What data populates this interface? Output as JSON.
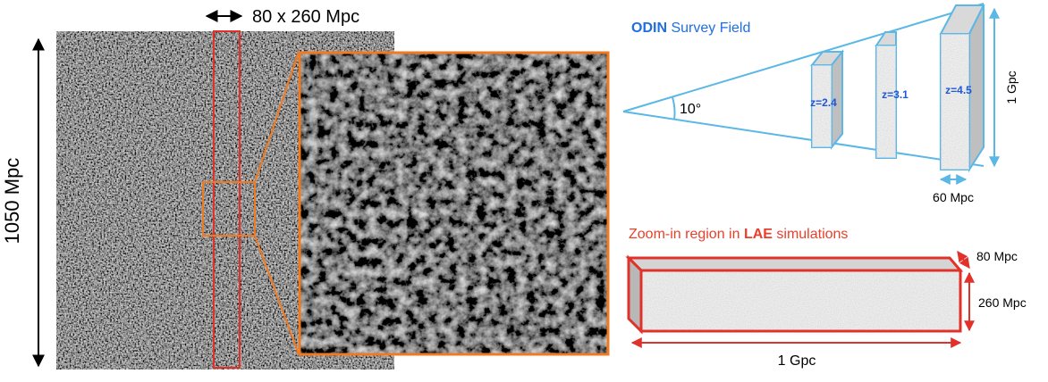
{
  "left_panel": {
    "slab_width_label": "80 x 260 Mpc",
    "box_height_label": "1050 Mpc"
  },
  "odin": {
    "title_bold": "ODIN",
    "title_rest": " Survey Field",
    "angle_label": "10°",
    "slices": [
      {
        "label": "z=2.4"
      },
      {
        "label": "z=3.1"
      },
      {
        "label": "z=4.5"
      }
    ],
    "height_label": "1 Gpc",
    "depth_label": "60 Mpc"
  },
  "zoom": {
    "title_prefix": "Zoom-in region in ",
    "title_bold": "LAE",
    "title_suffix": " simulations",
    "depth_label": "80 Mpc",
    "height_label": "260 Mpc",
    "length_label": "1 Gpc"
  },
  "colors": {
    "slab_red": "#e0322a",
    "zoom_orange": "#f07a22",
    "odin_blue": "#5bb7e6",
    "odin_text_blue": "#1f57d6",
    "zoom_text_red": "#e8402b"
  }
}
